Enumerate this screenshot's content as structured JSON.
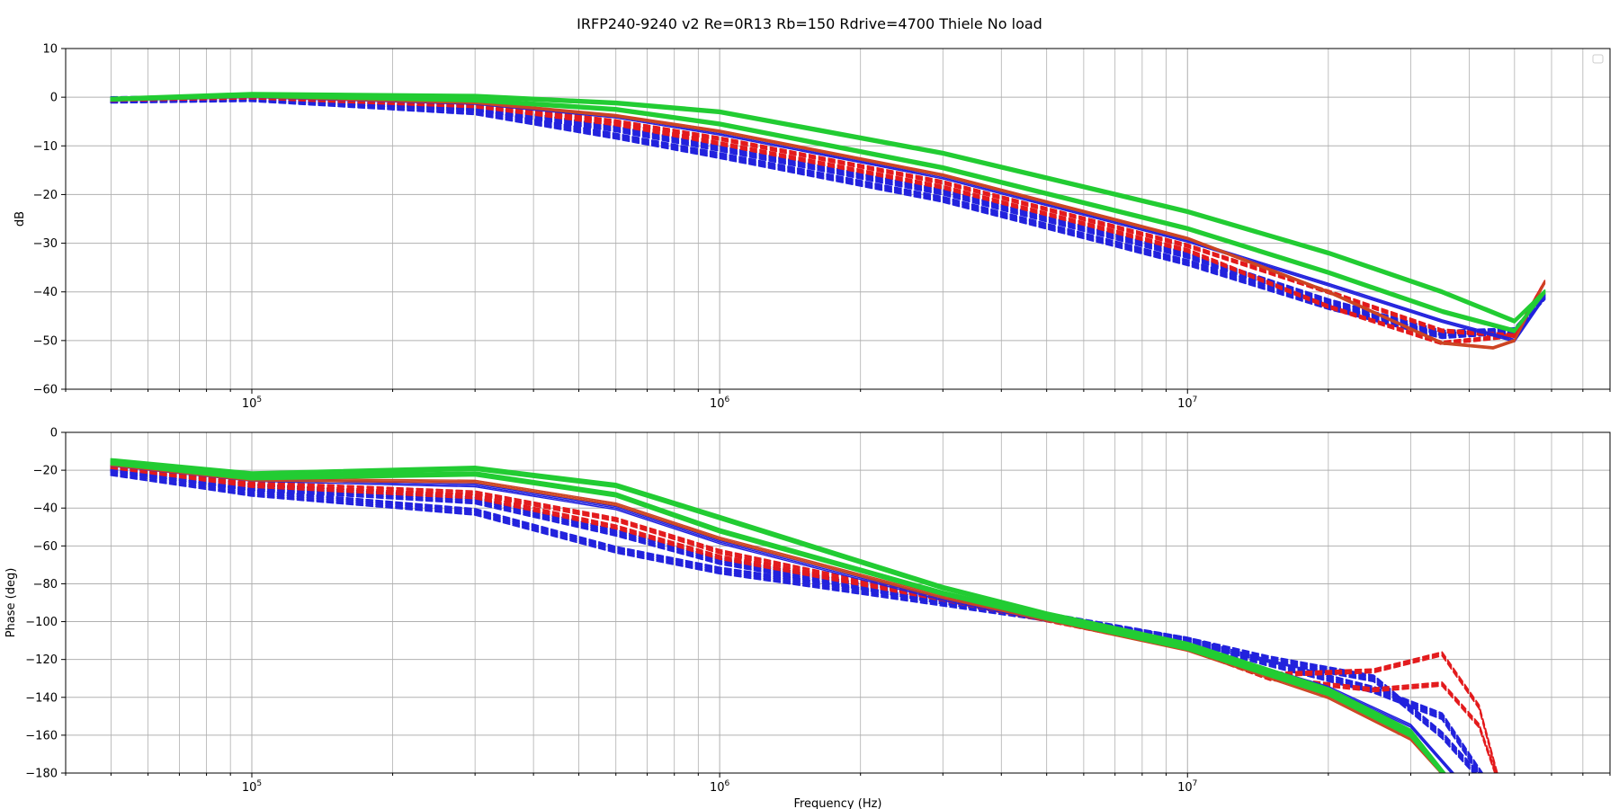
{
  "figure": {
    "title": "IRFP240-9240 v2 Re=0R13 Rb=150 Rdrive=4700 Thiele No load"
  },
  "colors": {
    "solid_red": "#cc4422",
    "dashed_red": "#e31a1c",
    "blue": "#2222dd",
    "green": "#22cc33",
    "grid": "#b0b0b0",
    "axes": "#000000"
  },
  "chart_data": [
    {
      "type": "line",
      "xscale": "log",
      "xlim": [
        40000,
        80000000
      ],
      "ylim": [
        -60,
        10
      ],
      "yticks": [
        10,
        0,
        -10,
        -20,
        -30,
        -40,
        -50,
        -60
      ],
      "xticks": [
        100000,
        1000000,
        10000000
      ],
      "xtick_labels": [
        {
          "base": "10",
          "exp": "5"
        },
        {
          "base": "10",
          "exp": "6"
        },
        {
          "base": "10",
          "exp": "7"
        }
      ],
      "xlabel": "",
      "ylabel": "dB",
      "grid": true,
      "legend": "top-right (empty)",
      "series": [
        {
          "group": "blue-dashed",
          "x": [
            50000,
            100000,
            300000,
            600000,
            1000000,
            3000000,
            10000000,
            20000000,
            35000000,
            50000000,
            58000000
          ],
          "y": [
            -0.6,
            -0.3,
            -3,
            -8,
            -12,
            -21,
            -34,
            -43,
            -49,
            -48,
            -41
          ]
        },
        {
          "group": "blue-dashed",
          "x": [
            50000,
            100000,
            300000,
            600000,
            1000000,
            3000000,
            10000000,
            20000000,
            35000000,
            50000000,
            58000000
          ],
          "y": [
            -0.5,
            -0.1,
            -2.2,
            -6.5,
            -10.5,
            -19.5,
            -32.5,
            -42,
            -48.5,
            -48,
            -41
          ]
        },
        {
          "group": "red-dashed",
          "x": [
            50000,
            100000,
            300000,
            600000,
            1000000,
            3000000,
            10000000,
            20000000,
            35000000,
            50000000,
            58000000
          ],
          "y": [
            -0.5,
            0,
            -1.8,
            -5.5,
            -9.5,
            -18.5,
            -31.5,
            -43,
            -50.5,
            -49,
            -38
          ]
        },
        {
          "group": "red-dashed",
          "x": [
            50000,
            100000,
            300000,
            600000,
            1000000,
            3000000,
            10000000,
            20000000,
            35000000,
            50000000,
            58000000
          ],
          "y": [
            -0.5,
            0.1,
            -1.5,
            -5,
            -8.5,
            -17.5,
            -30.5,
            -40,
            -48,
            -49,
            -38
          ]
        },
        {
          "group": "blue-solid",
          "x": [
            50000,
            100000,
            300000,
            600000,
            1000000,
            3000000,
            10000000,
            20000000,
            35000000,
            50000000,
            58000000
          ],
          "y": [
            -0.5,
            0.2,
            -1.2,
            -4,
            -7.5,
            -16.5,
            -29.5,
            -38.5,
            -46,
            -50,
            -41
          ]
        },
        {
          "group": "red-solid",
          "x": [
            50000,
            100000,
            300000,
            600000,
            1000000,
            3000000,
            10000000,
            20000000,
            35000000,
            45000000,
            50000000,
            58000000
          ],
          "y": [
            -0.5,
            0.2,
            -1.1,
            -3.8,
            -7,
            -16,
            -29,
            -40,
            -50.5,
            -51.5,
            -50,
            -38
          ]
        },
        {
          "group": "green-solid",
          "x": [
            50000,
            100000,
            300000,
            600000,
            1000000,
            3000000,
            10000000,
            20000000,
            35000000,
            50000000,
            58000000
          ],
          "y": [
            -0.4,
            0.4,
            -0.6,
            -2.5,
            -5.5,
            -14.5,
            -27,
            -36,
            -44,
            -48,
            -40
          ]
        },
        {
          "group": "green-solid",
          "x": [
            50000,
            100000,
            300000,
            600000,
            1000000,
            3000000,
            10000000,
            20000000,
            35000000,
            50000000,
            58000000
          ],
          "y": [
            -0.4,
            0.6,
            0.2,
            -1.2,
            -3,
            -11.5,
            -23.5,
            -32,
            -40,
            -46,
            -40
          ]
        }
      ]
    },
    {
      "type": "line",
      "xscale": "log",
      "xlim": [
        40000,
        80000000
      ],
      "ylim": [
        -180,
        0
      ],
      "yticks": [
        0,
        -20,
        -40,
        -60,
        -80,
        -100,
        -120,
        -140,
        -160,
        -180
      ],
      "xticks": [
        100000,
        1000000,
        10000000
      ],
      "xtick_labels": [
        {
          "base": "10",
          "exp": "5"
        },
        {
          "base": "10",
          "exp": "6"
        },
        {
          "base": "10",
          "exp": "7"
        }
      ],
      "xlabel": "Frequency (Hz)",
      "ylabel": "Phase (deg)",
      "grid": true,
      "series": [
        {
          "group": "blue-dashed",
          "x": [
            50000,
            100000,
            300000,
            600000,
            1000000,
            3000000,
            5000000,
            10000000,
            15000000,
            25000000,
            35000000,
            45000000
          ],
          "y": [
            -21,
            -32,
            -42,
            -62,
            -73,
            -90,
            -98,
            -110,
            -120,
            -130,
            -160,
            -190
          ]
        },
        {
          "group": "blue-dashed",
          "x": [
            50000,
            100000,
            300000,
            600000,
            1000000,
            3000000,
            5000000,
            10000000,
            15000000,
            25000000,
            35000000,
            45000000
          ],
          "y": [
            -19,
            -29,
            -36,
            -53,
            -68,
            -89,
            -97,
            -110,
            -122,
            -136,
            -150,
            -190
          ]
        },
        {
          "group": "red-dashed",
          "x": [
            50000,
            100000,
            300000,
            600000,
            1000000,
            3000000,
            5000000,
            10000000,
            15000000,
            25000000,
            35000000,
            42000000,
            47000000
          ],
          "y": [
            -18,
            -28,
            -34,
            -50,
            -66,
            -88,
            -98,
            -113,
            -128,
            -126,
            -117,
            -145,
            -190
          ]
        },
        {
          "group": "red-dashed",
          "x": [
            50000,
            100000,
            300000,
            600000,
            1000000,
            3000000,
            5000000,
            10000000,
            15000000,
            25000000,
            35000000,
            42000000,
            47000000
          ],
          "y": [
            -18,
            -27,
            -32,
            -46,
            -63,
            -88,
            -99,
            -114,
            -130,
            -136,
            -133,
            -155,
            -190
          ]
        },
        {
          "group": "blue-solid",
          "x": [
            50000,
            100000,
            300000,
            600000,
            1000000,
            3000000,
            5000000,
            10000000,
            20000000,
            30000000,
            40000000
          ],
          "y": [
            -17,
            -25,
            -28,
            -40,
            -58,
            -88,
            -99,
            -113,
            -135,
            -155,
            -190
          ]
        },
        {
          "group": "red-solid",
          "x": [
            50000,
            100000,
            300000,
            600000,
            1000000,
            3000000,
            5000000,
            10000000,
            20000000,
            30000000,
            38000000
          ],
          "y": [
            -17,
            -25,
            -26,
            -38,
            -56,
            -87,
            -99,
            -115,
            -140,
            -162,
            -190
          ]
        },
        {
          "group": "green-solid",
          "x": [
            50000,
            100000,
            300000,
            600000,
            1000000,
            3000000,
            5000000,
            10000000,
            20000000,
            30000000,
            38000000
          ],
          "y": [
            -16,
            -24,
            -22,
            -33,
            -52,
            -85,
            -98,
            -114,
            -138,
            -160,
            -190
          ]
        },
        {
          "group": "green-solid",
          "x": [
            50000,
            100000,
            300000,
            600000,
            1000000,
            3000000,
            5000000,
            10000000,
            20000000,
            30000000,
            38000000
          ],
          "y": [
            -15,
            -22,
            -19,
            -28,
            -45,
            -82,
            -96,
            -112,
            -136,
            -158,
            -190
          ]
        }
      ]
    }
  ]
}
